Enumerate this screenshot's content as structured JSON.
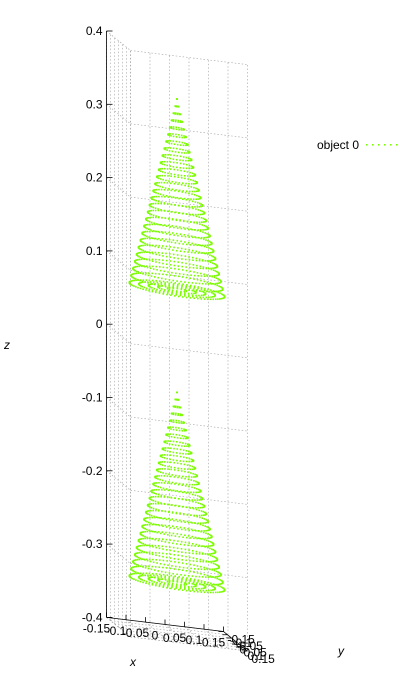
{
  "chart_data": {
    "type": "scatter",
    "dimensions": 3,
    "xlabel": "x",
    "ylabel": "y",
    "zlabel": "z",
    "xlim": [
      -0.15,
      0.15
    ],
    "ylim": [
      -0.15,
      0.15
    ],
    "zlim": [
      -0.4,
      0.4
    ],
    "x_ticks": [
      "-0.15",
      "-0.1",
      "-0.05",
      "0",
      "0.05",
      "0.1",
      "0.15"
    ],
    "y_ticks": [
      "-0.15",
      "-0.1",
      "-0.05",
      "0",
      "0.05",
      "0.1",
      "0.15"
    ],
    "z_ticks": [
      "-0.4",
      "-0.3",
      "-0.2",
      "-0.1",
      "0",
      "0.1",
      "0.2",
      "0.3",
      "0.4"
    ],
    "grid": true,
    "legend_position": "right",
    "point_color": "#7cfc00",
    "series": [
      {
        "name": "object 0",
        "shape": "two cones (point cloud)",
        "cones": [
          {
            "apex": [
              0,
              0,
              0.33
            ],
            "base_z": 0.07,
            "base_radius": 0.12
          },
          {
            "apex": [
              0,
              0,
              -0.07
            ],
            "base_z": -0.33,
            "base_radius": 0.12
          }
        ]
      }
    ]
  }
}
